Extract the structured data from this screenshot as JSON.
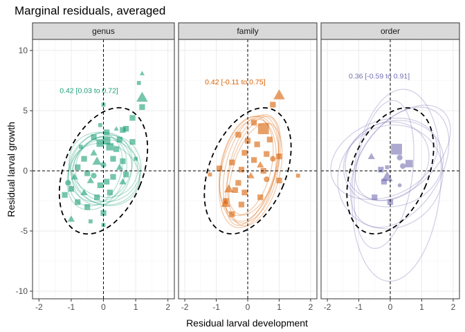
{
  "chart_data": {
    "type": "scatter",
    "title": "Marginal residuals, averaged",
    "xlabel": "Residual larval development",
    "ylabel": "Residual larval growth",
    "xlim": [
      -2.2,
      2.2
    ],
    "ylim": [
      -10.5,
      10.5
    ],
    "xticks": [
      "-2",
      "-1",
      "0",
      "1",
      "2"
    ],
    "yticks": [
      "-10",
      "-5",
      "0",
      "5",
      "10"
    ],
    "reference_lines": {
      "x": 0,
      "y": 0
    },
    "reference_ellipse": {
      "cx": 0,
      "cy": 0,
      "rx": 1.22,
      "ry": 5.5,
      "style": "black dashed"
    },
    "grid": true,
    "facets": [
      {
        "label": "genus",
        "color": "#1B9E77",
        "annotation": "0.42 [0.03 to 0.72]",
        "annotation_pos": [
          -0.45,
          6.7
        ],
        "ellipses": [
          {
            "cx": -0.1,
            "cy": 0.3,
            "rx": 0.95,
            "ry": 3.0,
            "tilt": 30
          },
          {
            "cx": 0.1,
            "cy": -0.1,
            "rx": 1.05,
            "ry": 2.7,
            "tilt": 28
          },
          {
            "cx": -0.2,
            "cy": -0.2,
            "rx": 0.85,
            "ry": 3.2,
            "tilt": 26
          },
          {
            "cx": 0.0,
            "cy": 0.5,
            "rx": 1.1,
            "ry": 2.6,
            "tilt": 33
          },
          {
            "cx": -0.05,
            "cy": 0.0,
            "rx": 0.9,
            "ry": 2.9,
            "tilt": 22
          },
          {
            "cx": 0.15,
            "cy": 0.2,
            "rx": 1.0,
            "ry": 2.8,
            "tilt": 35
          },
          {
            "cx": -0.25,
            "cy": 0.1,
            "rx": 0.8,
            "ry": 3.1,
            "tilt": 18
          },
          {
            "cx": 0.05,
            "cy": -0.3,
            "rx": 1.1,
            "ry": 2.5,
            "tilt": 27
          }
        ],
        "points": [
          {
            "x": 1.2,
            "y": 6.1,
            "shape": "triangle",
            "size": 4
          },
          {
            "x": 1.2,
            "y": 5.3,
            "shape": "square",
            "size": 2
          },
          {
            "x": 1.1,
            "y": 7.3,
            "shape": "square",
            "size": 1
          },
          {
            "x": 1.2,
            "y": 8.1,
            "shape": "triangle",
            "size": 1
          },
          {
            "x": 0.9,
            "y": 4.4,
            "shape": "square",
            "size": 2
          },
          {
            "x": 0.7,
            "y": 3.5,
            "shape": "square",
            "size": 2
          },
          {
            "x": 0.6,
            "y": 3.4,
            "shape": "square",
            "size": 2
          },
          {
            "x": 0.4,
            "y": 3.5,
            "shape": "triangle",
            "size": 1
          },
          {
            "x": 0.1,
            "y": 3.2,
            "shape": "square",
            "size": 2
          },
          {
            "x": 0.0,
            "y": 5.5,
            "shape": "square",
            "size": 1
          },
          {
            "x": 0.1,
            "y": 2.5,
            "shape": "square",
            "size": 3
          },
          {
            "x": 0.2,
            "y": 2.0,
            "shape": "square",
            "size": 3
          },
          {
            "x": -0.1,
            "y": 2.3,
            "shape": "square",
            "size": 3
          },
          {
            "x": 0.4,
            "y": 1.8,
            "shape": "square",
            "size": 2
          },
          {
            "x": 0.6,
            "y": 0.8,
            "shape": "square",
            "size": 2
          },
          {
            "x": 0.9,
            "y": 2.4,
            "shape": "square",
            "size": 2
          },
          {
            "x": 0.5,
            "y": 0.3,
            "shape": "triangle",
            "size": 2
          },
          {
            "x": 0.3,
            "y": -0.5,
            "shape": "square",
            "size": 2
          },
          {
            "x": 0.7,
            "y": -0.3,
            "shape": "square",
            "size": 2
          },
          {
            "x": -0.3,
            "y": 1.5,
            "shape": "triangle",
            "size": 2
          },
          {
            "x": -0.6,
            "y": 1.0,
            "shape": "square",
            "size": 2
          },
          {
            "x": -0.2,
            "y": 0.8,
            "shape": "triangle",
            "size": 3
          },
          {
            "x": 0.0,
            "y": 0.5,
            "shape": "circle",
            "size": 2
          },
          {
            "x": -0.8,
            "y": 0.3,
            "shape": "square",
            "size": 2
          },
          {
            "x": -0.5,
            "y": -0.2,
            "shape": "square",
            "size": 2
          },
          {
            "x": -0.9,
            "y": -0.5,
            "shape": "triangle",
            "size": 2
          },
          {
            "x": -0.4,
            "y": -0.8,
            "shape": "triangle",
            "size": 2
          },
          {
            "x": -0.1,
            "y": -1.2,
            "shape": "square",
            "size": 2
          },
          {
            "x": -1.0,
            "y": -1.5,
            "shape": "square",
            "size": 2
          },
          {
            "x": -0.6,
            "y": -1.8,
            "shape": "triangle",
            "size": 2
          },
          {
            "x": -0.2,
            "y": -2.2,
            "shape": "square",
            "size": 2
          },
          {
            "x": -0.8,
            "y": -2.6,
            "shape": "square",
            "size": 2
          },
          {
            "x": -1.1,
            "y": -1.0,
            "shape": "circle",
            "size": 2
          },
          {
            "x": -0.5,
            "y": -3.0,
            "shape": "square",
            "size": 2
          },
          {
            "x": 0.0,
            "y": -3.5,
            "shape": "square",
            "size": 2
          },
          {
            "x": 0.0,
            "y": -4.5,
            "shape": "square",
            "size": 1
          },
          {
            "x": -1.0,
            "y": -4.0,
            "shape": "triangle",
            "size": 2
          },
          {
            "x": -0.4,
            "y": -4.2,
            "shape": "square",
            "size": 1
          },
          {
            "x": 0.2,
            "y": -1.8,
            "shape": "square",
            "size": 2
          },
          {
            "x": 0.3,
            "y": 1.0,
            "shape": "square",
            "size": 2
          },
          {
            "x": -0.3,
            "y": 2.8,
            "shape": "square",
            "size": 2
          },
          {
            "x": -0.7,
            "y": 2.0,
            "shape": "square",
            "size": 1
          },
          {
            "x": 0.1,
            "y": -0.9,
            "shape": "square",
            "size": 2
          },
          {
            "x": -0.1,
            "y": 3.8,
            "shape": "square",
            "size": 1
          },
          {
            "x": 0.5,
            "y": 2.6,
            "shape": "square",
            "size": 2
          },
          {
            "x": 1.0,
            "y": 1.0,
            "shape": "square",
            "size": 1
          },
          {
            "x": -1.2,
            "y": -2.0,
            "shape": "square",
            "size": 2
          },
          {
            "x": -0.3,
            "y": -0.4,
            "shape": "circle",
            "size": 2
          },
          {
            "x": 0.6,
            "y": -0.9,
            "shape": "triangle",
            "size": 2
          }
        ]
      },
      {
        "label": "family",
        "color": "#D95F02",
        "annotation": "0.42 [-0.11 to 0.75]",
        "annotation_pos": [
          -0.4,
          7.4
        ],
        "ellipses": [
          {
            "cx": 0.1,
            "cy": 0.2,
            "rx": 0.8,
            "ry": 4.5,
            "tilt": 14
          },
          {
            "cx": 0.2,
            "cy": 0.5,
            "rx": 0.75,
            "ry": 4.3,
            "tilt": 16
          },
          {
            "cx": 0.0,
            "cy": -0.2,
            "rx": 0.85,
            "ry": 4.6,
            "tilt": 12
          },
          {
            "cx": 0.15,
            "cy": 0.0,
            "rx": 0.7,
            "ry": 4.7,
            "tilt": 17
          },
          {
            "cx": -0.05,
            "cy": 0.4,
            "rx": 0.8,
            "ry": 4.2,
            "tilt": 13
          },
          {
            "cx": 0.25,
            "cy": -0.3,
            "rx": 0.75,
            "ry": 4.4,
            "tilt": 15
          },
          {
            "cx": 0.05,
            "cy": 0.1,
            "rx": 0.9,
            "ry": 4.5,
            "tilt": 11
          }
        ],
        "points": [
          {
            "x": 1.0,
            "y": 6.3,
            "shape": "triangle",
            "size": 4
          },
          {
            "x": 0.8,
            "y": 5.5,
            "shape": "square",
            "size": 2
          },
          {
            "x": 0.5,
            "y": 3.5,
            "shape": "square",
            "size": 5
          },
          {
            "x": 0.2,
            "y": 4.0,
            "shape": "square",
            "size": 2
          },
          {
            "x": -0.3,
            "y": 3.0,
            "shape": "square",
            "size": 2
          },
          {
            "x": 0.0,
            "y": 2.5,
            "shape": "square",
            "size": 2
          },
          {
            "x": 0.3,
            "y": 2.2,
            "shape": "square",
            "size": 2
          },
          {
            "x": -0.1,
            "y": 1.5,
            "shape": "square",
            "size": 2
          },
          {
            "x": 0.6,
            "y": 1.4,
            "shape": "square",
            "size": 2
          },
          {
            "x": 0.8,
            "y": 1.0,
            "shape": "circle",
            "size": 2
          },
          {
            "x": 1.0,
            "y": 1.2,
            "shape": "square",
            "size": 2
          },
          {
            "x": -0.5,
            "y": 0.7,
            "shape": "square",
            "size": 2
          },
          {
            "x": 0.4,
            "y": 0.5,
            "shape": "triangle",
            "size": 2
          },
          {
            "x": 0.1,
            "y": -0.4,
            "shape": "triangle",
            "size": 2
          },
          {
            "x": -0.3,
            "y": -1.0,
            "shape": "square",
            "size": 2
          },
          {
            "x": -0.6,
            "y": -1.5,
            "shape": "triangle",
            "size": 3
          },
          {
            "x": -0.1,
            "y": -1.8,
            "shape": "square",
            "size": 2
          },
          {
            "x": 0.4,
            "y": -2.2,
            "shape": "square",
            "size": 2
          },
          {
            "x": -0.2,
            "y": -2.8,
            "shape": "square",
            "size": 2
          },
          {
            "x": -0.7,
            "y": -2.5,
            "shape": "square",
            "size": 2
          },
          {
            "x": -0.7,
            "y": -2.7,
            "shape": "triangle",
            "size": 3
          },
          {
            "x": -0.4,
            "y": -1.6,
            "shape": "square",
            "size": 2
          },
          {
            "x": 0.6,
            "y": -0.7,
            "shape": "circle",
            "size": 2
          },
          {
            "x": 1.0,
            "y": -0.8,
            "shape": "square",
            "size": 2
          },
          {
            "x": 1.6,
            "y": -0.4,
            "shape": "square",
            "size": 1
          },
          {
            "x": -1.2,
            "y": -0.3,
            "shape": "square",
            "size": 1
          },
          {
            "x": -0.9,
            "y": 0.2,
            "shape": "square",
            "size": 2
          },
          {
            "x": 0.2,
            "y": 0.9,
            "shape": "square",
            "size": 2
          },
          {
            "x": 0.5,
            "y": 0.0,
            "shape": "square",
            "size": 2
          },
          {
            "x": -0.2,
            "y": 0.1,
            "shape": "square",
            "size": 2
          },
          {
            "x": 0.7,
            "y": 2.6,
            "shape": "square",
            "size": 2
          },
          {
            "x": -0.5,
            "y": -3.6,
            "shape": "square",
            "size": 2
          }
        ]
      },
      {
        "label": "order",
        "color": "#7570B3",
        "annotation": "0.36 [-0.59 to 0.91]",
        "annotation_pos": [
          -0.35,
          7.9
        ],
        "ellipses": [
          {
            "cx": -0.2,
            "cy": 1.0,
            "rx": 1.2,
            "ry": 4.6,
            "tilt": 68
          },
          {
            "cx": 0.1,
            "cy": 0.6,
            "rx": 1.35,
            "ry": 4.2,
            "tilt": 72
          },
          {
            "cx": 0.0,
            "cy": -0.5,
            "rx": 1.6,
            "ry": 4.5,
            "tilt": 50
          },
          {
            "cx": 0.3,
            "cy": 0.3,
            "rx": 1.3,
            "ry": 5.5,
            "tilt": 32
          },
          {
            "cx": -0.1,
            "cy": 0.8,
            "rx": 1.2,
            "ry": 3.6,
            "tilt": 58
          },
          {
            "cx": 0.2,
            "cy": -1.2,
            "rx": 1.4,
            "ry": 8.0,
            "tilt": 5
          },
          {
            "cx": -0.2,
            "cy": -0.3,
            "rx": 0.9,
            "ry": 6.2,
            "tilt": 8
          },
          {
            "cx": 0.4,
            "cy": 1.5,
            "rx": 1.1,
            "ry": 4.8,
            "tilt": 45
          }
        ],
        "points": [
          {
            "x": 0.2,
            "y": 1.8,
            "shape": "square",
            "size": 5
          },
          {
            "x": 0.3,
            "y": 1.1,
            "shape": "circle",
            "size": 2
          },
          {
            "x": 0.6,
            "y": 0.6,
            "shape": "square",
            "size": 3
          },
          {
            "x": 0.4,
            "y": 0.4,
            "shape": "circle",
            "size": 2
          },
          {
            "x": -0.3,
            "y": 0.1,
            "shape": "square",
            "size": 2
          },
          {
            "x": -0.1,
            "y": -0.5,
            "shape": "triangle",
            "size": 4
          },
          {
            "x": -0.6,
            "y": 1.2,
            "shape": "triangle",
            "size": 2
          },
          {
            "x": -0.2,
            "y": -0.9,
            "shape": "square",
            "size": 2
          },
          {
            "x": 0.3,
            "y": -1.2,
            "shape": "circle",
            "size": 1
          },
          {
            "x": -0.5,
            "y": -2.2,
            "shape": "square",
            "size": 2
          },
          {
            "x": 0.0,
            "y": -2.6,
            "shape": "square",
            "size": 2
          },
          {
            "x": -0.1,
            "y": 0.3,
            "shape": "square",
            "size": 1
          }
        ]
      }
    ]
  }
}
